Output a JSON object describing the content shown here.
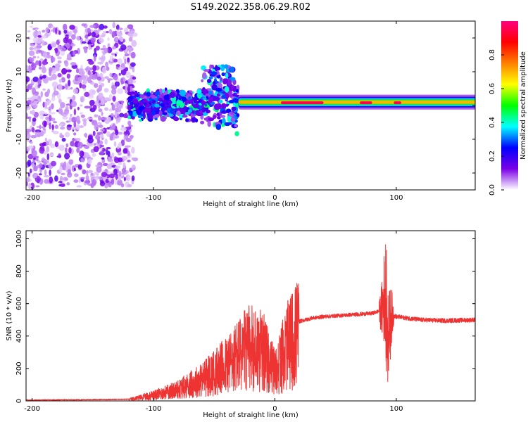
{
  "figure": {
    "title": "S149.2022.358.06.29.R02"
  },
  "chart_data": [
    {
      "type": "heatmap",
      "xlabel": "Height of straight line (km)",
      "ylabel": "Frequency (Hz)",
      "xlim": [
        -205,
        165
      ],
      "ylim": [
        -25,
        25
      ],
      "xticks": [
        -200,
        -100,
        0,
        100
      ],
      "yticks": [
        -20,
        -10,
        0,
        10,
        20
      ],
      "colorbar": {
        "label": "Normalized spectral amplitude",
        "range": [
          0,
          1
        ],
        "ticks": [
          0.0,
          0.2,
          0.4,
          0.6,
          0.8
        ],
        "colors": [
          "#ffffff",
          "#7a00e6",
          "#0000ff",
          "#00ffff",
          "#00ff00",
          "#ffff00",
          "#ff8000",
          "#ff0000",
          "#ff0080"
        ]
      },
      "regions": [
        {
          "x": [
            -205,
            -120
          ],
          "freq_center": 0,
          "freq_half_width": 24,
          "amplitude": 0.1,
          "description_ref": "noise"
        },
        {
          "x": [
            -120,
            -30
          ],
          "freq_center": 0,
          "freq_half_width": 6,
          "amplitude": 0.25
        },
        {
          "x": [
            -30,
            165
          ],
          "freq_center": 1,
          "freq_half_width": 1.5,
          "amplitude": 0.95
        }
      ]
    },
    {
      "type": "line",
      "xlabel": "Height of straight line (km)",
      "ylabel": "SNR (10 * v/v)",
      "xlim": [
        -205,
        165
      ],
      "ylim": [
        0,
        1050
      ],
      "xticks": [
        -200,
        -100,
        0,
        100
      ],
      "yticks": [
        0,
        200,
        400,
        600,
        800,
        1000
      ],
      "color": "#ee3333",
      "x": [
        -205,
        -150,
        -120,
        -100,
        -80,
        -60,
        -40,
        -30,
        -20,
        -10,
        0,
        10,
        20,
        30,
        40,
        60,
        80,
        88,
        92,
        94,
        96,
        100,
        120,
        140,
        165
      ],
      "y": [
        5,
        8,
        10,
        40,
        80,
        150,
        250,
        320,
        380,
        350,
        200,
        380,
        490,
        510,
        520,
        530,
        540,
        560,
        700,
        400,
        530,
        520,
        500,
        495,
        500
      ]
    }
  ]
}
